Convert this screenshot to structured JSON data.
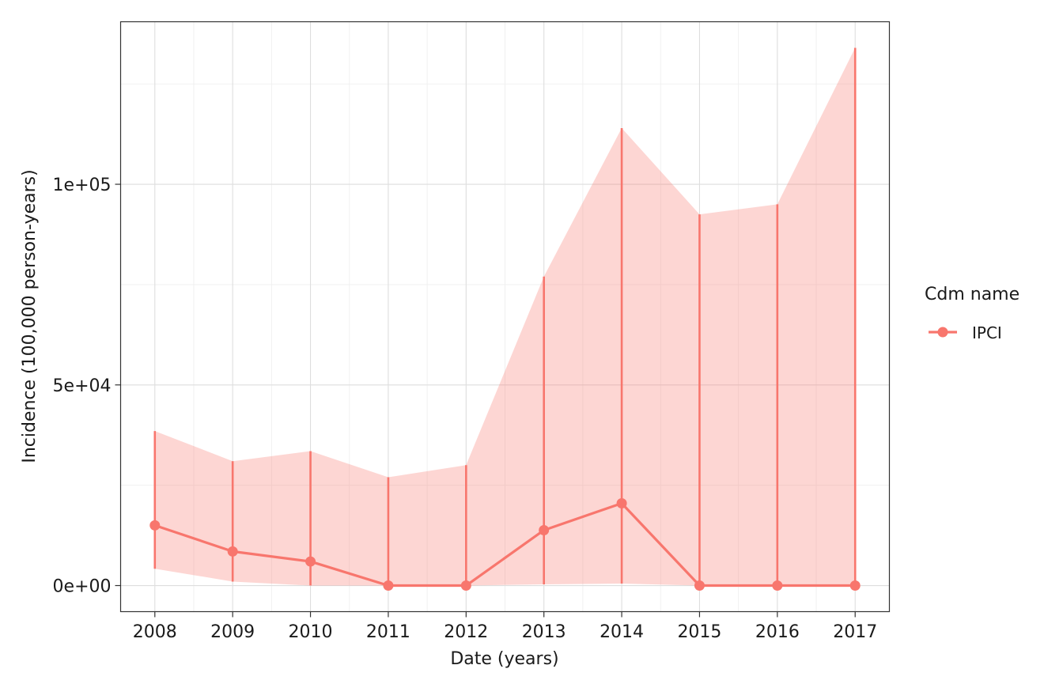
{
  "colors": {
    "series": "#F8766D",
    "ribbon": "#F8766D",
    "grid_major": "#dedede",
    "grid_minor": "#efefef",
    "panel_border": "#333333",
    "text": "#1a1a1a"
  },
  "chart_data": {
    "type": "line",
    "xlabel": "Date (years)",
    "ylabel": "Incidence (100,000 person-years)",
    "legend_title": "Cdm name",
    "legend_position": "right",
    "grid": true,
    "x": [
      2008,
      2009,
      2010,
      2011,
      2012,
      2013,
      2014,
      2015,
      2016,
      2017
    ],
    "x_tick_labels": [
      "2008",
      "2009",
      "2010",
      "2011",
      "2012",
      "2013",
      "2014",
      "2015",
      "2016",
      "2017"
    ],
    "y_tick_values": [
      0,
      50000,
      100000
    ],
    "y_tick_labels": [
      "0e+00",
      "5e+04",
      "1e+05"
    ],
    "xlim": [
      2007.56,
      2017.44
    ],
    "ylim": [
      -6500,
      140500
    ],
    "series": [
      {
        "name": "IPCI",
        "values": [
          15000,
          8500,
          6000,
          0,
          0,
          13800,
          20500,
          0,
          0,
          0
        ],
        "lower": [
          4200,
          1000,
          0,
          0,
          0,
          300,
          500,
          0,
          0,
          0
        ],
        "upper": [
          38500,
          31000,
          33500,
          27000,
          30000,
          77000,
          114000,
          92500,
          95000,
          134000
        ]
      }
    ]
  }
}
